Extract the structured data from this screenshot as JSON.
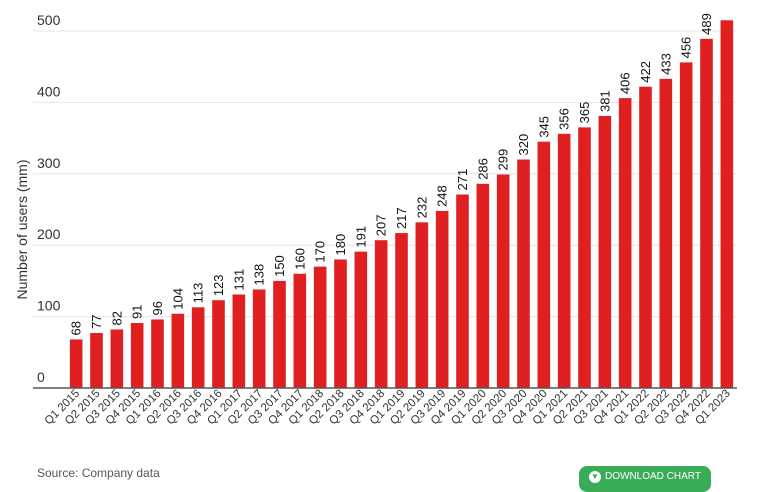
{
  "chart_data": {
    "type": "bar",
    "title": "",
    "xlabel": "",
    "ylabel": "Number of users (mm)",
    "ylim": [
      0,
      500
    ],
    "yticks": [
      0,
      100,
      200,
      300,
      400,
      500
    ],
    "grid": true,
    "legend": "none",
    "bar_color": "#e02020",
    "categories": [
      "Q1 2015",
      "Q2 2015",
      "Q3 2015",
      "Q4 2015",
      "Q1 2016",
      "Q2 2016",
      "Q3 2016",
      "Q4 2016",
      "Q1 2017",
      "Q2 2017",
      "Q3 2017",
      "Q4 2017",
      "Q1 2018",
      "Q2 2018",
      "Q3 2018",
      "Q4 2018",
      "Q1 2019",
      "Q2 2019",
      "Q3 2019",
      "Q4 2019",
      "Q1 2020",
      "Q2 2020",
      "Q3 2020",
      "Q4 2020",
      "Q1 2021",
      "Q2 2021",
      "Q3 2021",
      "Q4 2021",
      "Q1 2022",
      "Q2 2022",
      "Q3 2022",
      "Q4 2022",
      "Q1 2023"
    ],
    "values": [
      68,
      77,
      82,
      91,
      96,
      104,
      113,
      123,
      131,
      138,
      150,
      160,
      170,
      180,
      191,
      207,
      217,
      232,
      248,
      271,
      286,
      299,
      320,
      345,
      356,
      365,
      381,
      406,
      422,
      433,
      456,
      489,
      515
    ],
    "value_labels": [
      "68",
      "77",
      "82",
      "91",
      "96",
      "104",
      "113",
      "123",
      "131",
      "138",
      "150",
      "160",
      "170",
      "180",
      "191",
      "207",
      "217",
      "232",
      "248",
      "271",
      "286",
      "299",
      "320",
      "345",
      "356",
      "365",
      "381",
      "406",
      "422",
      "433",
      "456",
      "489",
      ""
    ]
  },
  "footer": {
    "source_text": "Source: Company data",
    "download_label": "Download chart",
    "download_icon": "download-arrow-icon"
  }
}
